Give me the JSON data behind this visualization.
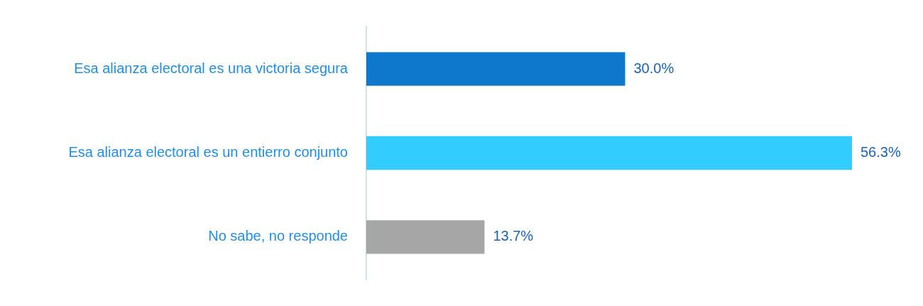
{
  "chart_data": {
    "type": "bar",
    "orientation": "horizontal",
    "categories": [
      "Esa alianza electoral es una victoria segura",
      "Esa alianza electoral es un entierro conjunto",
      "No sabe, no responde"
    ],
    "values": [
      30.0,
      56.3,
      13.7
    ],
    "colors": [
      "#0e78cc",
      "#33ccff",
      "#a6a6a6"
    ],
    "value_labels": [
      "30.0%",
      "56.3%",
      "13.7%"
    ],
    "legend": false
  }
}
